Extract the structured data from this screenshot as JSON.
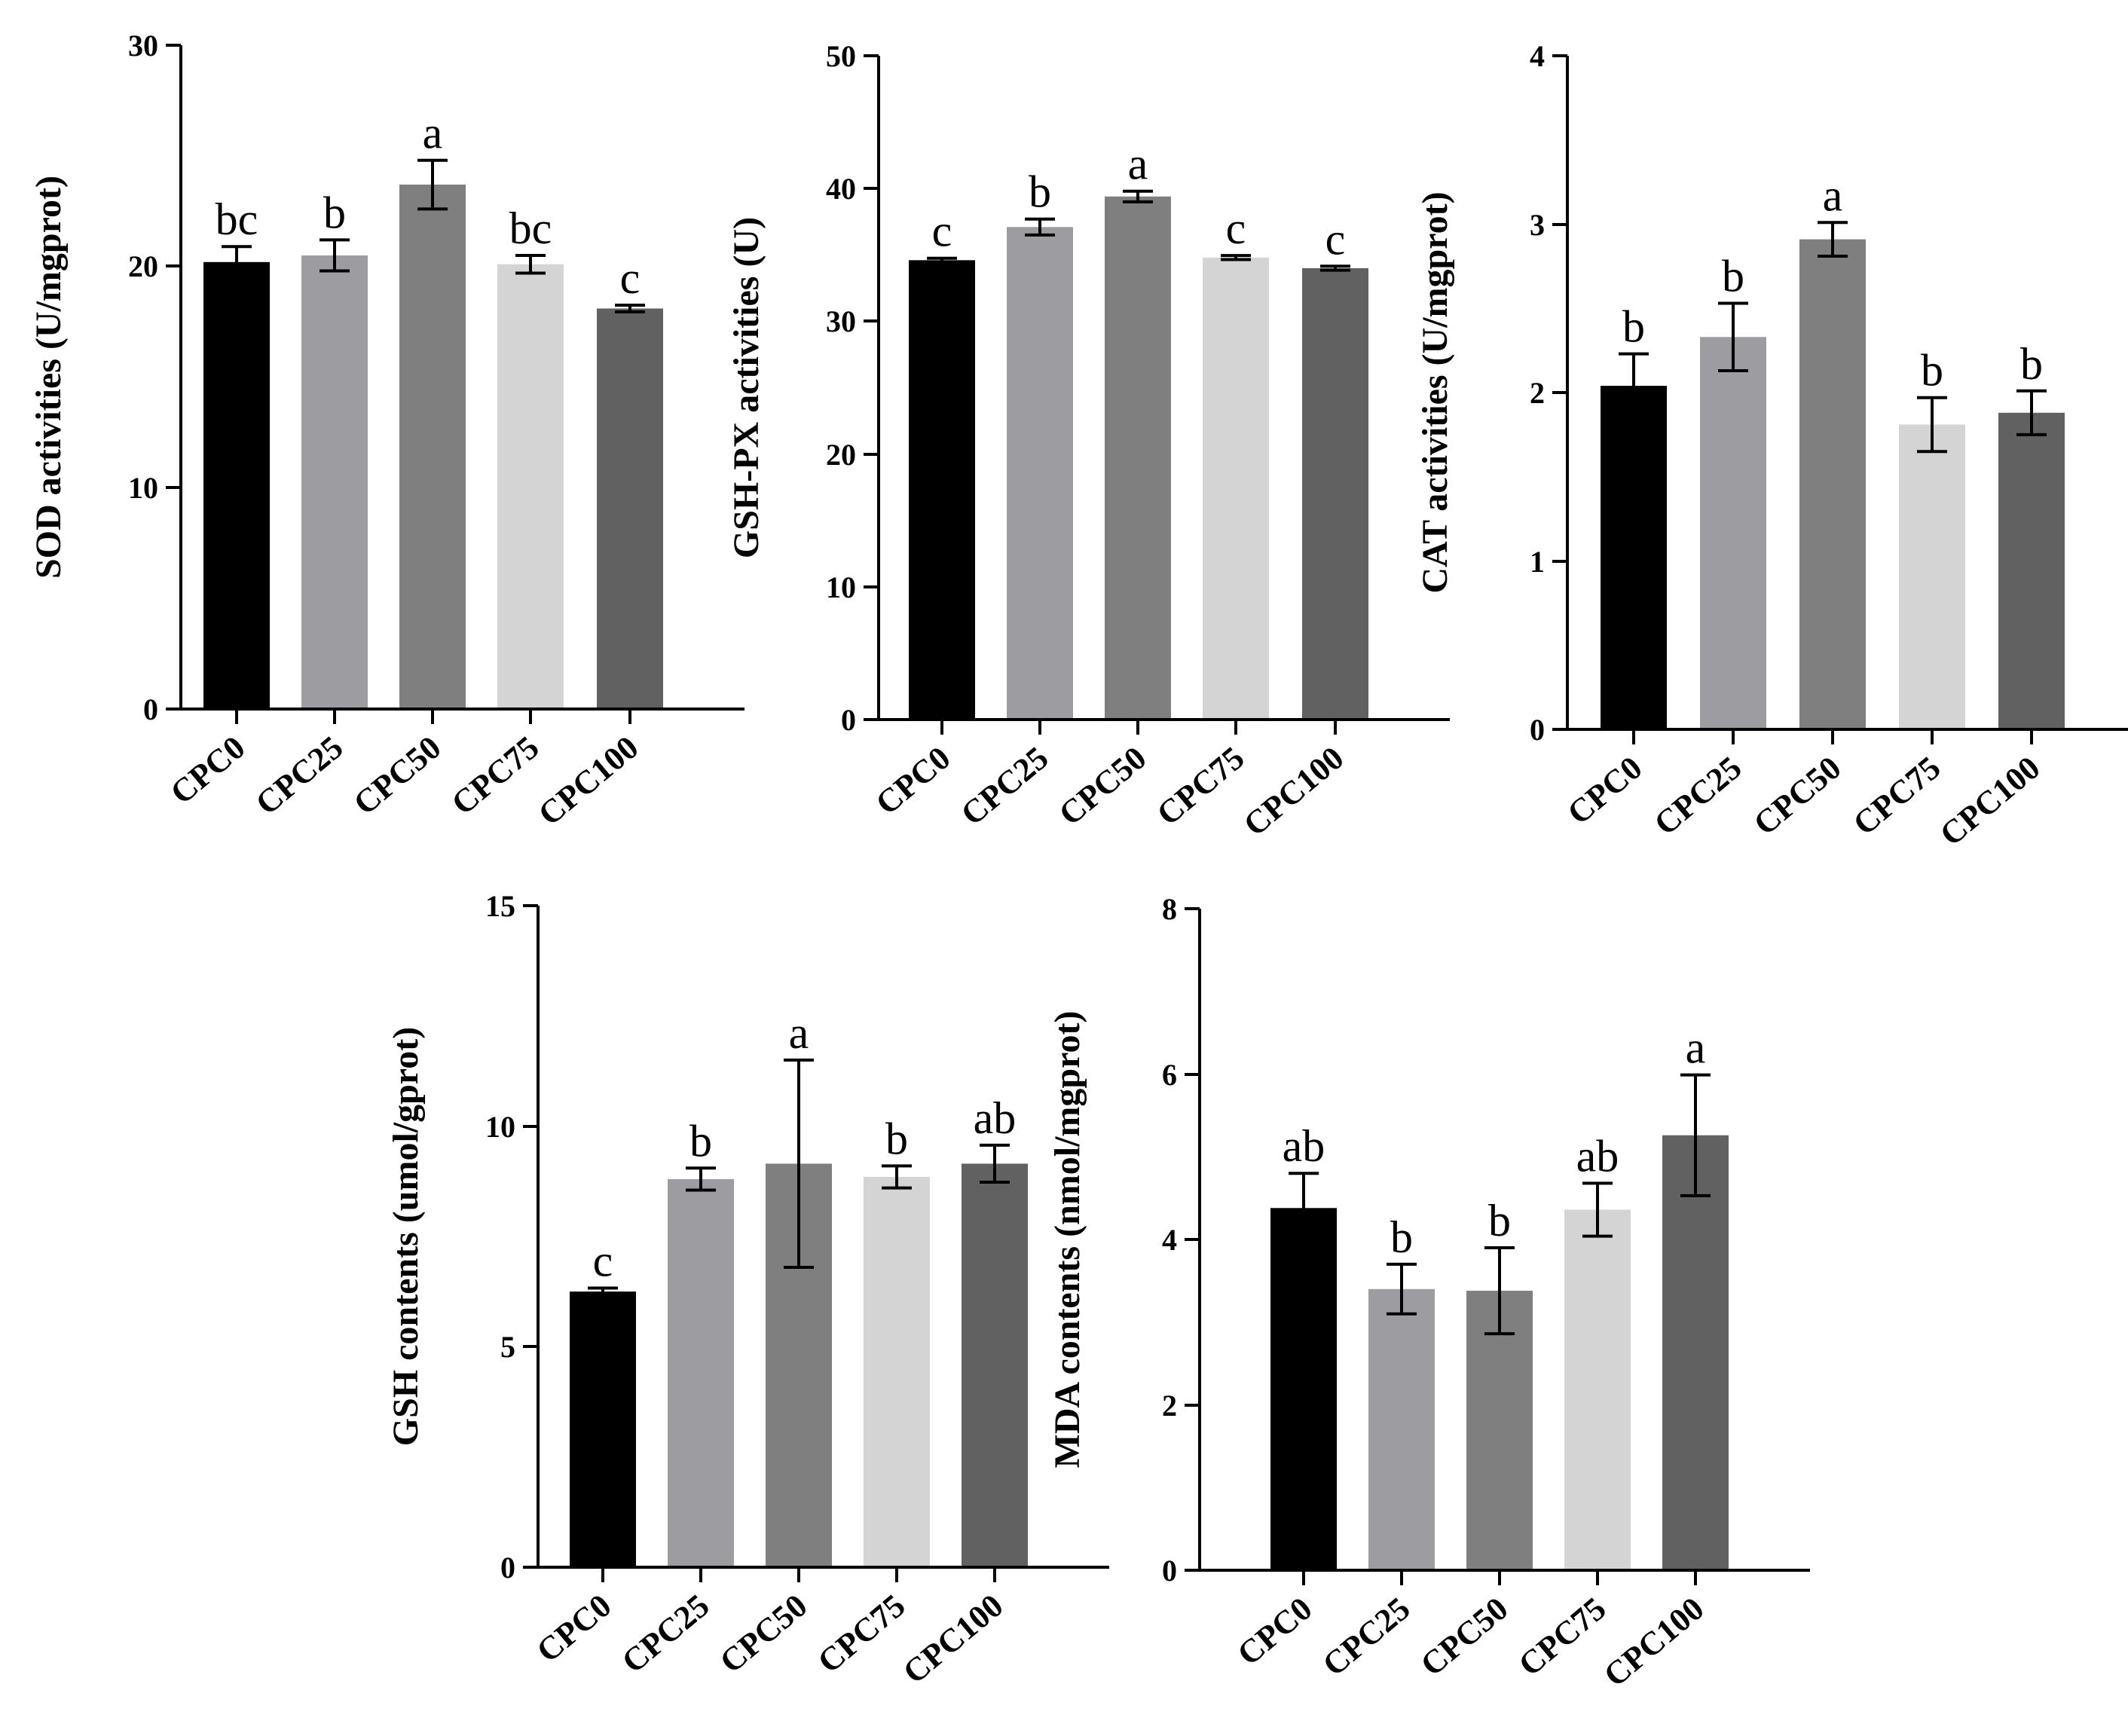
{
  "chart_data": [
    {
      "type": "bar",
      "id": "sod",
      "ylabel": "SOD activities (U/mgprot)",
      "categories": [
        "CPC0",
        "CPC25",
        "CPC50",
        "CPC75",
        "CPC100"
      ],
      "values": [
        20.2,
        20.5,
        23.7,
        20.1,
        18.1
      ],
      "errors": [
        0.7,
        0.7,
        1.1,
        0.4,
        0.15
      ],
      "significance": [
        "bc",
        "b",
        "a",
        "bc",
        "c"
      ],
      "ylim": [
        0,
        30
      ],
      "yticks": [
        "0",
        "10",
        "20",
        "30"
      ]
    },
    {
      "type": "bar",
      "id": "gshpx",
      "ylabel": "GSH-PX activities (U)",
      "categories": [
        "CPC0",
        "CPC25",
        "CPC50",
        "CPC75",
        "CPC100"
      ],
      "values": [
        34.6,
        37.1,
        39.4,
        34.8,
        34.0
      ],
      "errors": [
        0.15,
        0.6,
        0.4,
        0.15,
        0.15
      ],
      "significance": [
        "c",
        "b",
        "a",
        "c",
        "c"
      ],
      "ylim": [
        0,
        50
      ],
      "yticks": [
        "0",
        "10",
        "20",
        "30",
        "40",
        "50"
      ]
    },
    {
      "type": "bar",
      "id": "cat",
      "ylabel": "CAT activities (U/mgprot)",
      "categories": [
        "CPC0",
        "CPC25",
        "CPC50",
        "CPC75",
        "CPC100"
      ],
      "values": [
        2.04,
        2.33,
        2.91,
        1.81,
        1.88
      ],
      "errors": [
        0.19,
        0.2,
        0.1,
        0.16,
        0.13
      ],
      "significance": [
        "b",
        "b",
        "a",
        "b",
        "b"
      ],
      "ylim": [
        0,
        4
      ],
      "yticks": [
        "0",
        "1",
        "2",
        "3",
        "4"
      ]
    },
    {
      "type": "bar",
      "id": "gsh",
      "ylabel": "GSH contents (umol/gprot)",
      "categories": [
        "CPC0",
        "CPC25",
        "CPC50",
        "CPC75",
        "CPC100"
      ],
      "values": [
        6.25,
        8.8,
        9.15,
        8.85,
        9.15
      ],
      "errors": [
        0.08,
        0.25,
        2.35,
        0.25,
        0.42
      ],
      "significance": [
        "c",
        "b",
        "a",
        "b",
        "ab"
      ],
      "ylim": [
        0,
        15
      ],
      "yticks": [
        "0",
        "5",
        "10",
        "15"
      ]
    },
    {
      "type": "bar",
      "id": "mda",
      "ylabel": "MDA contents (nmol/mgprot)",
      "categories": [
        "CPC0",
        "CPC25",
        "CPC50",
        "CPC75",
        "CPC100"
      ],
      "values": [
        4.38,
        3.4,
        3.38,
        4.36,
        5.26
      ],
      "errors": [
        0.42,
        0.3,
        0.52,
        0.32,
        0.73
      ],
      "significance": [
        "ab",
        "b",
        "b",
        "ab",
        "a"
      ],
      "ylim": [
        0,
        8
      ],
      "yticks": [
        "0",
        "2",
        "4",
        "6",
        "8"
      ]
    }
  ],
  "colors": {
    "bars": [
      "#000000",
      "#9d9da1",
      "#7f7f7f",
      "#d4d4d4",
      "#616161"
    ],
    "axis": "#000000",
    "background": "#ffffff"
  }
}
